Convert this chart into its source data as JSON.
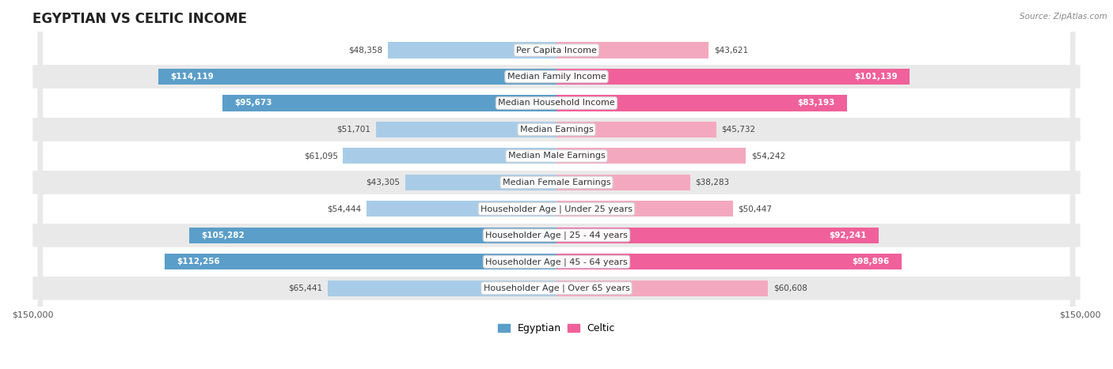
{
  "title": "EGYPTIAN VS CELTIC INCOME",
  "source": "Source: ZipAtlas.com",
  "categories": [
    "Per Capita Income",
    "Median Family Income",
    "Median Household Income",
    "Median Earnings",
    "Median Male Earnings",
    "Median Female Earnings",
    "Householder Age | Under 25 years",
    "Householder Age | 25 - 44 years",
    "Householder Age | 45 - 64 years",
    "Householder Age | Over 65 years"
  ],
  "egyptian_values": [
    48358,
    114119,
    95673,
    51701,
    61095,
    43305,
    54444,
    105282,
    112256,
    65441
  ],
  "celtic_values": [
    43621,
    101139,
    83193,
    45732,
    54242,
    38283,
    50447,
    92241,
    98896,
    60608
  ],
  "egyptian_color_light": "#a8cce8",
  "egyptian_color_dark": "#5b9ec9",
  "celtic_color_light": "#f4a8c0",
  "celtic_color_dark": "#f0609a",
  "max_value": 150000,
  "title_fontsize": 12,
  "label_fontsize": 8,
  "value_fontsize": 7.5,
  "legend_fontsize": 9,
  "axis_fontsize": 8,
  "row_colors": [
    "#f2f2f2",
    "#e9e9e9"
  ],
  "dark_threshold": 75000
}
